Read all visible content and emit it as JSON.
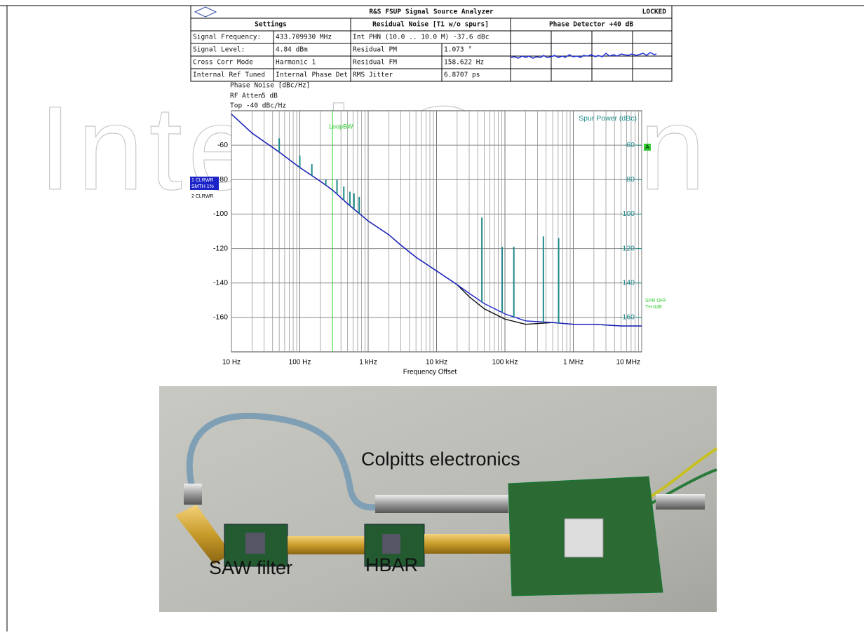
{
  "watermark": "IntechOpen",
  "header": {
    "title": "R&S FSUP Signal Source Analyzer",
    "status": "LOCKED",
    "columns": [
      "Settings",
      "Residual Noise [T1 w/o spurs]",
      "Phase Detector +40 dB"
    ],
    "rows": [
      [
        "Signal Frequency:",
        "433.709930 MHz",
        "Int PHN (10.0 .. 10.0 M) -37.6 dBc"
      ],
      [
        "Signal Level:",
        "4.84 dBm",
        "Residual PM",
        "1.073 °"
      ],
      [
        "Cross Corr Mode",
        "Harmonic 1",
        "Residual FM",
        "158.622 Hz"
      ],
      [
        "Internal Ref Tuned",
        "Internal Phase Det",
        "RMS Jitter",
        "6.8707 ps"
      ]
    ]
  },
  "chart_data": {
    "type": "line",
    "y_label": "Phase Noise [dBc/Hz]",
    "rf_atten_label": "RF Atten",
    "rf_atten_value": "5 dB",
    "top_label": "Top -40 dBc/Hz",
    "x_label": "Frequency Offset",
    "y2_label": "Spur Power (dBc)",
    "log_x": true,
    "grid": true,
    "trace_info": "SMTH 1%",
    "marker": "A",
    "spr_label": "SPR OFF",
    "th_label": "TH 0dB",
    "xlim": [
      10,
      10000000
    ],
    "xticks": [
      {
        "value": 10,
        "label": "10 Hz"
      },
      {
        "value": 100,
        "label": "100 Hz"
      },
      {
        "value": 1000,
        "label": "1 kHz"
      },
      {
        "value": 10000,
        "label": "10 kHz"
      },
      {
        "value": 100000,
        "label": "100 kHz"
      },
      {
        "value": 1000000,
        "label": "1 MHz"
      },
      {
        "value": 10000000,
        "label": "10 MHz"
      }
    ],
    "ylim": [
      -180,
      -40
    ],
    "yticks": [
      -60,
      -80,
      -100,
      -120,
      -140,
      -160
    ],
    "y2lim": [
      -180,
      -40
    ],
    "y2ticks": [
      -60,
      -80,
      -100,
      -120,
      -140,
      -160
    ],
    "loop_bw": {
      "label": "LoopBW",
      "x": 300,
      "color": "#33cc33"
    },
    "x": [
      10,
      20,
      50,
      100,
      200,
      300,
      500,
      1000,
      2000,
      3000,
      5000,
      10000,
      20000,
      30000,
      50000,
      100000,
      200000,
      500000,
      1000000,
      2000000,
      5000000,
      10000000
    ],
    "series": [
      {
        "name": "2 CLRWR",
        "color": "#111111",
        "values": [
          -42,
          -53,
          -64,
          -73,
          -81,
          -86,
          -94,
          -104,
          -112,
          -118,
          -125,
          -133,
          -141,
          -148,
          -155,
          -161,
          -164,
          -163,
          -164,
          -164,
          -165,
          -165
        ]
      },
      {
        "name": "1 CLRWR",
        "color": "#1a22c8",
        "values": [
          -42,
          -53,
          -64,
          -73,
          -81,
          -86,
          -94,
          -104,
          -112,
          -118,
          -125,
          -133,
          -141,
          -146,
          -152,
          -158,
          -162,
          -163,
          -164,
          -164,
          -165,
          -165
        ]
      }
    ],
    "spurs": {
      "color": "#1f8a8a",
      "x": [
        50,
        100,
        150,
        240,
        350,
        440,
        540,
        620,
        740,
        46000,
        91000,
        135000,
        365000,
        610000
      ],
      "values": [
        -56,
        -66,
        -71,
        -80,
        -80,
        -84,
        -87,
        -88,
        -90,
        -102,
        -119,
        -119,
        -113,
        -114
      ]
    }
  },
  "photo": {
    "labels": [
      "Colpitts electronics",
      "SAW filter",
      "HBAR"
    ]
  }
}
